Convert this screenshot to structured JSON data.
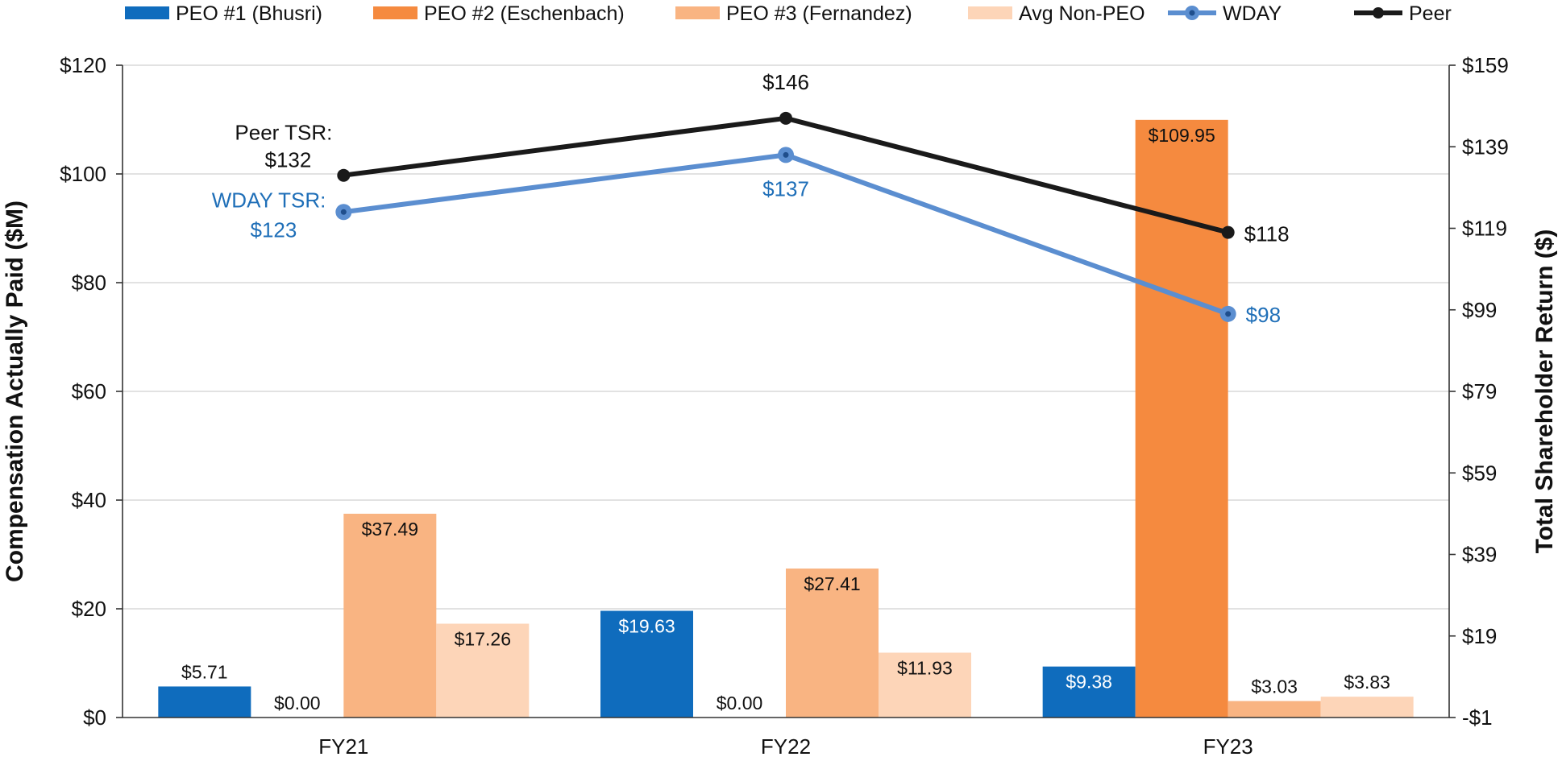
{
  "chart_data": {
    "type": "bar",
    "title": "",
    "categories": [
      "FY21",
      "FY22",
      "FY23"
    ],
    "ylabel": "Compensation Actually Paid ($M)",
    "y2label": "Total Shareholder Return ($)",
    "ylim": [
      0,
      120
    ],
    "y2lim": [
      -1,
      159
    ],
    "yticks": [
      0,
      20,
      40,
      60,
      80,
      100,
      120
    ],
    "yticklabels": [
      "$0",
      "$20",
      "$40",
      "$60",
      "$80",
      "$100",
      "$120"
    ],
    "y2ticks": [
      -1,
      19,
      39,
      59,
      79,
      99,
      119,
      139,
      159
    ],
    "y2ticklabels": [
      "-$1",
      "$19",
      "$39",
      "$59",
      "$79",
      "$99",
      "$119",
      "$139",
      "$159"
    ],
    "legend_position": "top",
    "series": [
      {
        "name": "PEO #1 (Bhusri)",
        "color": "#0F6CBD",
        "values": [
          5.71,
          19.63,
          9.38
        ],
        "labels": [
          "$5.71",
          "$19.63",
          "$9.38"
        ],
        "label_color": "#ffffff"
      },
      {
        "name": "PEO #2 (Eschenbach)",
        "color": "#F58A3F",
        "values": [
          0.0,
          0.0,
          109.95
        ],
        "labels": [
          "$0.00",
          "$0.00",
          "$109.95"
        ],
        "label_color": "#111111"
      },
      {
        "name": "PEO #3 (Fernandez)",
        "color": "#F9B482",
        "values": [
          37.49,
          27.41,
          3.03
        ],
        "labels": [
          "$37.49",
          "$27.41",
          "$3.03"
        ],
        "label_color": "#111111"
      },
      {
        "name": "Avg Non-PEO",
        "color": "#FDD5B8",
        "values": [
          17.26,
          11.93,
          3.83
        ],
        "labels": [
          "$17.26",
          "$11.93",
          "$3.83"
        ],
        "label_color": "#111111"
      }
    ],
    "lines": [
      {
        "name": "WDAY",
        "color": "#5B8ED0",
        "label_color": "#1F6FB8",
        "values": [
          123,
          137,
          98
        ],
        "labels": [
          "$123",
          "$137",
          "$98"
        ],
        "first_label_prefix": "WDAY TSR:"
      },
      {
        "name": "Peer",
        "color": "#1A1A1A",
        "label_color": "#111111",
        "values": [
          132,
          146,
          118
        ],
        "labels": [
          "$132",
          "$146",
          "$118"
        ],
        "first_label_prefix": "Peer TSR:"
      }
    ]
  }
}
